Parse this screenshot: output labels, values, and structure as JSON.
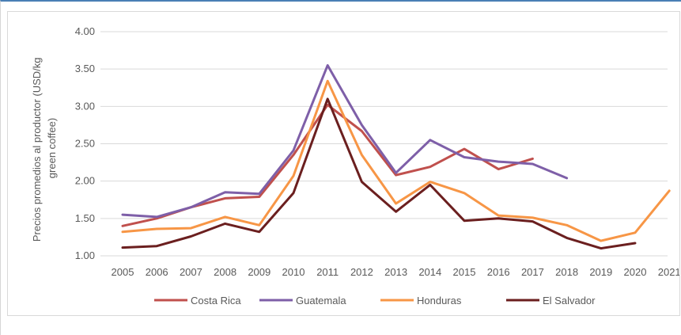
{
  "chart_data": {
    "type": "line",
    "ylabel_line1": "Precios promedios al productor (USD/kg",
    "ylabel_line2": "green coffee)",
    "ylim": [
      1.0,
      4.0
    ],
    "y_ticks": [
      "1.00",
      "1.50",
      "2.00",
      "2.50",
      "3.00",
      "3.50",
      "4.00"
    ],
    "grid": "horizontal",
    "legend_position": "bottom",
    "categories": [
      "2005",
      "2006",
      "2007",
      "2008",
      "2009",
      "2010",
      "2011",
      "2012",
      "2013",
      "2014",
      "2015",
      "2016",
      "2017",
      "2018",
      "2019",
      "2020",
      "2021"
    ],
    "series": [
      {
        "name": "Costa Rica",
        "color": "#c0504d",
        "values": [
          1.4,
          1.5,
          1.65,
          1.77,
          1.79,
          2.35,
          3.02,
          2.67,
          2.08,
          2.19,
          2.43,
          2.16,
          2.3,
          null,
          null,
          null,
          null
        ]
      },
      {
        "name": "Guatemala",
        "color": "#7e5fa8",
        "values": [
          1.55,
          1.52,
          1.65,
          1.85,
          1.83,
          2.41,
          3.55,
          2.75,
          2.11,
          2.55,
          2.32,
          2.26,
          2.23,
          2.04,
          null,
          null,
          null
        ]
      },
      {
        "name": "Honduras",
        "color": "#f79646",
        "values": [
          1.32,
          1.36,
          1.37,
          1.52,
          1.41,
          2.07,
          3.34,
          2.35,
          1.7,
          1.99,
          1.84,
          1.54,
          1.51,
          1.41,
          1.2,
          1.31,
          1.87
        ]
      },
      {
        "name": "El Salvador",
        "color": "#6b1f1f",
        "values": [
          1.11,
          1.13,
          1.26,
          1.43,
          1.32,
          1.84,
          3.1,
          1.99,
          1.59,
          1.95,
          1.47,
          1.5,
          1.46,
          1.24,
          1.1,
          1.17,
          null
        ]
      }
    ]
  }
}
